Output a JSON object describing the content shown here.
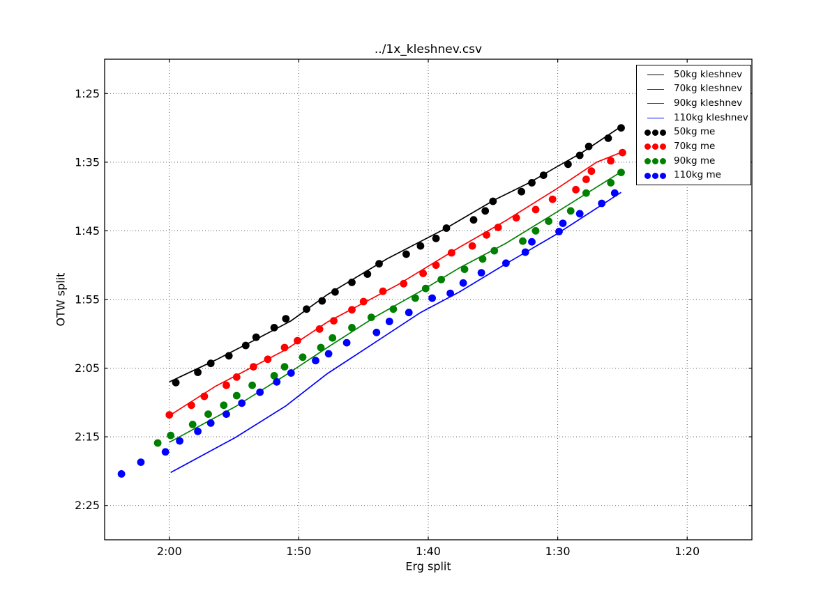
{
  "chart": {
    "title": "../1x_kleshnev.csv",
    "xlabel": "Erg split",
    "ylabel": "OTW split"
  },
  "chart_data": {
    "type": "line+scatter",
    "title": "../1x_kleshnev.csv",
    "xlabel": "Erg split",
    "ylabel": "OTW split",
    "grid": true,
    "legend_position": "upper right",
    "x_axis": {
      "inverted": true,
      "lim_seconds": [
        125,
        75
      ],
      "ticks": [
        {
          "label": "2:00",
          "seconds": 120
        },
        {
          "label": "1:50",
          "seconds": 110
        },
        {
          "label": "1:40",
          "seconds": 100
        },
        {
          "label": "1:30",
          "seconds": 90
        },
        {
          "label": "1:20",
          "seconds": 80
        }
      ]
    },
    "y_axis": {
      "inverted": true,
      "lim_seconds": [
        80,
        150
      ],
      "ticks": [
        {
          "label": "1:25",
          "seconds": 85
        },
        {
          "label": "1:35",
          "seconds": 95
        },
        {
          "label": "1:45",
          "seconds": 105
        },
        {
          "label": "1:55",
          "seconds": 115
        },
        {
          "label": "2:05",
          "seconds": 125
        },
        {
          "label": "2:15",
          "seconds": 135
        },
        {
          "label": "2:25",
          "seconds": 145
        }
      ]
    },
    "series": [
      {
        "name": "50kg kleshnev",
        "type": "line",
        "color": "#000000",
        "points": [
          [
            120.0,
            127.0
          ],
          [
            116.4,
            123.8
          ],
          [
            113.5,
            121.0
          ],
          [
            110.6,
            118.1
          ],
          [
            107.8,
            114.3
          ],
          [
            103.2,
            109.1
          ],
          [
            98.7,
            104.7
          ],
          [
            94.9,
            100.5
          ],
          [
            92.2,
            98.0
          ],
          [
            90.1,
            95.7
          ],
          [
            88.2,
            93.7
          ],
          [
            85.1,
            89.8
          ]
        ]
      },
      {
        "name": "70kg kleshnev",
        "type": "line",
        "color": "#ff0000",
        "points": [
          [
            119.9,
            131.8
          ],
          [
            116.4,
            127.6
          ],
          [
            111.0,
            122.3
          ],
          [
            107.8,
            118.3
          ],
          [
            102.4,
            112.9
          ],
          [
            97.6,
            107.4
          ],
          [
            94.0,
            103.5
          ],
          [
            90.1,
            98.9
          ],
          [
            87.0,
            95.0
          ],
          [
            85.0,
            93.5
          ]
        ]
      },
      {
        "name": "90kg kleshnev",
        "type": "line",
        "color": "#008000",
        "points": [
          [
            120.0,
            135.8
          ],
          [
            114.9,
            130.6
          ],
          [
            111.0,
            126.0
          ],
          [
            107.8,
            122.0
          ],
          [
            104.0,
            117.4
          ],
          [
            100.6,
            113.8
          ],
          [
            97.6,
            110.4
          ],
          [
            94.0,
            106.8
          ],
          [
            90.1,
            102.3
          ],
          [
            85.1,
            96.4
          ]
        ]
      },
      {
        "name": "110kg kleshnev",
        "type": "line",
        "color": "#0000ff",
        "points": [
          [
            119.9,
            140.2
          ],
          [
            114.9,
            135.1
          ],
          [
            111.0,
            130.5
          ],
          [
            107.8,
            125.8
          ],
          [
            103.9,
            121.0
          ],
          [
            100.6,
            116.9
          ],
          [
            97.6,
            113.9
          ],
          [
            94.0,
            109.8
          ],
          [
            90.1,
            105.5
          ],
          [
            85.1,
            99.4
          ]
        ]
      },
      {
        "name": "50kg me",
        "type": "scatter",
        "color": "#000000",
        "points": [
          [
            119.5,
            127.1
          ],
          [
            117.8,
            125.6
          ],
          [
            116.8,
            124.3
          ],
          [
            115.4,
            123.2
          ],
          [
            114.1,
            121.7
          ],
          [
            113.3,
            120.5
          ],
          [
            111.9,
            119.1
          ],
          [
            111.0,
            117.8
          ],
          [
            109.4,
            116.4
          ],
          [
            108.2,
            115.2
          ],
          [
            107.2,
            113.9
          ],
          [
            105.9,
            112.5
          ],
          [
            104.7,
            111.3
          ],
          [
            103.8,
            109.8
          ],
          [
            101.7,
            108.4
          ],
          [
            100.6,
            107.2
          ],
          [
            99.4,
            106.1
          ],
          [
            98.6,
            104.6
          ],
          [
            96.5,
            103.4
          ],
          [
            95.6,
            102.1
          ],
          [
            95.0,
            100.7
          ],
          [
            92.8,
            99.3
          ],
          [
            92.0,
            98.0
          ],
          [
            91.1,
            96.9
          ],
          [
            89.2,
            95.3
          ],
          [
            88.3,
            94.0
          ],
          [
            87.6,
            92.7
          ],
          [
            86.1,
            91.5
          ],
          [
            85.1,
            90.0
          ]
        ]
      },
      {
        "name": "70kg me",
        "type": "scatter",
        "color": "#ff0000",
        "points": [
          [
            120.0,
            131.8
          ],
          [
            118.3,
            130.4
          ],
          [
            117.3,
            129.1
          ],
          [
            115.6,
            127.5
          ],
          [
            114.8,
            126.3
          ],
          [
            113.5,
            124.8
          ],
          [
            112.4,
            123.7
          ],
          [
            111.1,
            122.0
          ],
          [
            110.1,
            121.0
          ],
          [
            108.4,
            119.3
          ],
          [
            107.3,
            118.1
          ],
          [
            105.9,
            116.5
          ],
          [
            105.0,
            115.3
          ],
          [
            103.5,
            113.8
          ],
          [
            101.9,
            112.7
          ],
          [
            100.4,
            111.2
          ],
          [
            99.4,
            110.0
          ],
          [
            98.2,
            108.2
          ],
          [
            96.6,
            107.2
          ],
          [
            95.5,
            105.6
          ],
          [
            94.6,
            104.5
          ],
          [
            93.2,
            103.1
          ],
          [
            91.7,
            101.9
          ],
          [
            90.4,
            100.4
          ],
          [
            88.6,
            99.0
          ],
          [
            87.8,
            97.5
          ],
          [
            87.4,
            96.3
          ],
          [
            85.9,
            94.8
          ],
          [
            85.0,
            93.6
          ]
        ]
      },
      {
        "name": "90kg me",
        "type": "scatter",
        "color": "#008000",
        "points": [
          [
            120.9,
            135.9
          ],
          [
            119.9,
            134.8
          ],
          [
            118.2,
            133.2
          ],
          [
            117.0,
            131.7
          ],
          [
            115.8,
            130.4
          ],
          [
            114.8,
            129.0
          ],
          [
            113.6,
            127.5
          ],
          [
            111.9,
            126.1
          ],
          [
            111.1,
            124.8
          ],
          [
            109.7,
            123.4
          ],
          [
            108.3,
            122.0
          ],
          [
            107.4,
            120.6
          ],
          [
            105.9,
            119.1
          ],
          [
            104.4,
            117.6
          ],
          [
            102.7,
            116.4
          ],
          [
            101.0,
            114.8
          ],
          [
            100.2,
            113.4
          ],
          [
            99.0,
            112.1
          ],
          [
            97.2,
            110.6
          ],
          [
            95.8,
            109.1
          ],
          [
            94.9,
            107.9
          ],
          [
            92.7,
            106.5
          ],
          [
            91.7,
            105.0
          ],
          [
            90.7,
            103.6
          ],
          [
            89.0,
            102.1
          ],
          [
            87.8,
            99.5
          ],
          [
            85.9,
            98.0
          ],
          [
            85.1,
            96.5
          ]
        ]
      },
      {
        "name": "110kg me",
        "type": "scatter",
        "color": "#0000ff",
        "points": [
          [
            123.7,
            140.4
          ],
          [
            122.2,
            138.7
          ],
          [
            120.3,
            137.2
          ],
          [
            119.2,
            135.6
          ],
          [
            117.8,
            134.2
          ],
          [
            116.8,
            133.0
          ],
          [
            115.6,
            131.7
          ],
          [
            114.4,
            130.1
          ],
          [
            113.0,
            128.5
          ],
          [
            111.7,
            127.0
          ],
          [
            110.6,
            125.7
          ],
          [
            108.7,
            123.9
          ],
          [
            107.7,
            122.9
          ],
          [
            106.3,
            121.3
          ],
          [
            104.0,
            119.8
          ],
          [
            103.0,
            118.2
          ],
          [
            101.5,
            116.9
          ],
          [
            99.7,
            114.8
          ],
          [
            98.3,
            114.1
          ],
          [
            97.3,
            112.6
          ],
          [
            95.9,
            111.1
          ],
          [
            94.0,
            109.7
          ],
          [
            92.5,
            108.1
          ],
          [
            92.0,
            106.6
          ],
          [
            89.9,
            105.1
          ],
          [
            89.6,
            103.9
          ],
          [
            88.3,
            102.5
          ],
          [
            86.6,
            101.0
          ],
          [
            85.6,
            99.5
          ]
        ]
      }
    ]
  }
}
